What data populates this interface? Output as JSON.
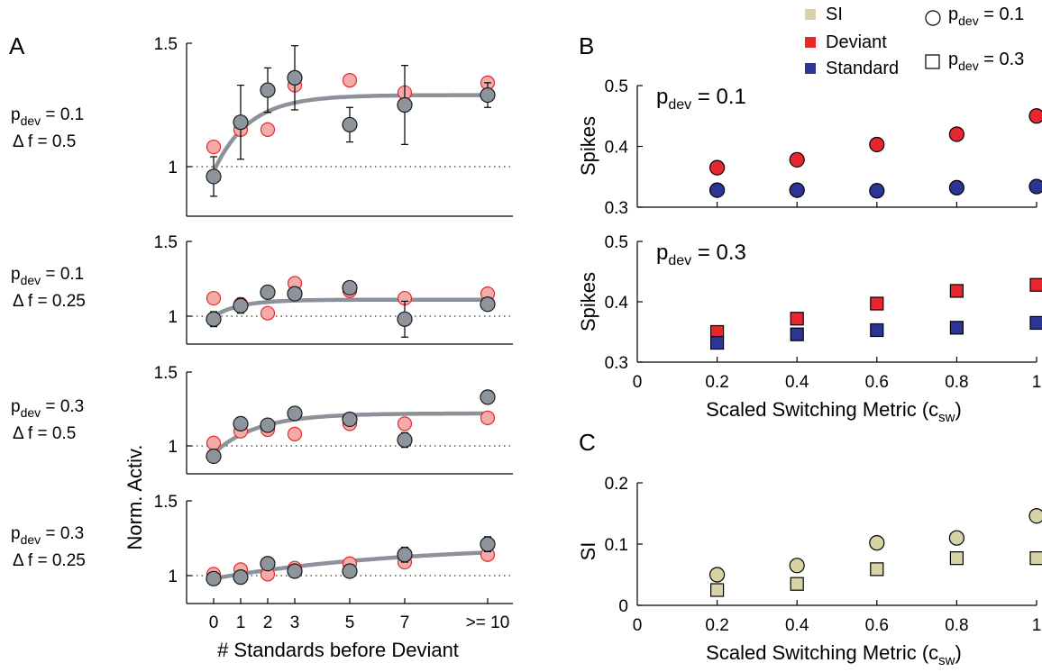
{
  "panel_letters": {
    "A": "A",
    "B": "B",
    "C": "C"
  },
  "panelA": {
    "xlabel": "# Standards before Deviant",
    "ylabel": "Norm. Activ.",
    "x_ticks": [
      "0",
      "1",
      "2",
      "3",
      "5",
      "7",
      ">= 10"
    ],
    "y_ticks": [
      "1",
      "1.5"
    ],
    "rows": [
      {
        "pdev": "0.1",
        "df": "0.5"
      },
      {
        "pdev": "0.1",
        "df": "0.25"
      },
      {
        "pdev": "0.3",
        "df": "0.5"
      },
      {
        "pdev": "0.3",
        "df": "0.25"
      }
    ]
  },
  "panelB": {
    "ylabel": "Spikes",
    "xlabel": "Scaled Switching Metric (c",
    "xlabel_sub": "sw",
    "y_ticks": [
      "0.3",
      "0.4",
      "0.5"
    ],
    "x_ticks": [
      "0",
      "0.2",
      "0.4",
      "0.6",
      "0.8",
      "1"
    ],
    "top_label_value": "0.1",
    "bottom_label_value": "0.3"
  },
  "panelC": {
    "ylabel": "SI",
    "xlabel": "Scaled Switching Metric (c",
    "xlabel_sub": "sw",
    "y_ticks": [
      "0",
      "0.1",
      "0.2"
    ],
    "x_ticks": [
      "0",
      "0.2",
      "0.4",
      "0.6",
      "0.8",
      "1"
    ]
  },
  "legend": {
    "si": "SI",
    "deviant": "Deviant",
    "standard": "Standard",
    "circle_value": "0.1",
    "square_value": "0.3"
  },
  "labels": {
    "p": "p",
    "dev": "dev",
    "eq": " = ",
    "delta": "Δ f = "
  },
  "colors": {
    "deviant": "#e8262d",
    "standard": "#2b3595",
    "si": "#d7d3a4",
    "activ": "#8d949b",
    "deviant_light": "#f2adaa",
    "fit": "#8c9299"
  },
  "chart_data": [
    {
      "type": "scatter",
      "panel": "A1",
      "x": [
        0,
        1,
        2,
        3,
        5,
        7,
        10
      ],
      "series": [
        {
          "values": [
            0.96,
            1.18,
            1.31,
            1.36,
            1.17,
            1.25,
            1.29
          ],
          "err": [
            0.08,
            0.15,
            0.09,
            0.13,
            0.07,
            0.16,
            0.05
          ]
        },
        {
          "values": [
            1.08,
            1.15,
            1.15,
            1.33,
            1.35,
            1.3,
            1.34
          ]
        }
      ],
      "fit": {
        "y0": 0.98,
        "ymax": 1.29,
        "tau": 1.3
      },
      "ylim": [
        0.78,
        1.5
      ]
    },
    {
      "type": "scatter",
      "panel": "A2",
      "x": [
        0,
        1,
        2,
        3,
        5,
        7,
        10
      ],
      "series": [
        {
          "values": [
            0.98,
            1.07,
            1.16,
            1.15,
            1.19,
            0.98,
            1.08
          ],
          "err": [
            0.05,
            0.05,
            0.04,
            0.04,
            0.04,
            0.12,
            0.03
          ]
        },
        {
          "values": [
            1.12,
            1.08,
            1.02,
            1.22,
            1.17,
            1.12,
            1.15
          ]
        }
      ],
      "fit": {
        "y0": 1.0,
        "ymax": 1.11,
        "tau": 1.0
      },
      "ylim": [
        0.88,
        1.5
      ]
    },
    {
      "type": "scatter",
      "panel": "A3",
      "x": [
        0,
        1,
        2,
        3,
        5,
        7,
        10
      ],
      "series": [
        {
          "values": [
            0.93,
            1.15,
            1.14,
            1.22,
            1.18,
            1.04,
            1.33
          ],
          "err": [
            0.02,
            0.03,
            0.03,
            0.03,
            0.03,
            0.05,
            0.03
          ]
        },
        {
          "values": [
            1.02,
            1.1,
            1.11,
            1.08,
            1.15,
            1.15,
            1.19
          ]
        }
      ],
      "fit": {
        "y0": 0.95,
        "ymax": 1.22,
        "tau": 1.6
      },
      "ylim": [
        0.88,
        1.5
      ]
    },
    {
      "type": "scatter",
      "panel": "A4",
      "x": [
        0,
        1,
        2,
        3,
        5,
        7,
        10
      ],
      "series": [
        {
          "values": [
            0.98,
            0.99,
            1.08,
            1.03,
            1.03,
            1.14,
            1.21
          ],
          "err": [
            0.02,
            0.02,
            0.02,
            0.03,
            0.04,
            0.05,
            0.05
          ]
        },
        {
          "values": [
            1.01,
            1.04,
            1.01,
            1.05,
            1.08,
            1.09,
            1.14
          ]
        }
      ],
      "fit": {
        "y0": 0.98,
        "ymax": 1.21,
        "tau": 7.0
      },
      "ylim": [
        0.88,
        1.5
      ]
    },
    {
      "type": "scatter",
      "panel": "B-top",
      "x": [
        0.2,
        0.4,
        0.6,
        0.8,
        1.0
      ],
      "series": [
        {
          "name": "Deviant",
          "values": [
            0.365,
            0.378,
            0.403,
            0.42,
            0.45
          ]
        },
        {
          "name": "Standard",
          "values": [
            0.328,
            0.328,
            0.327,
            0.332,
            0.334
          ]
        }
      ],
      "xlim": [
        0,
        1
      ],
      "ylim": [
        0.3,
        0.5
      ]
    },
    {
      "type": "scatter",
      "panel": "B-bottom",
      "x": [
        0.2,
        0.4,
        0.6,
        0.8,
        1.0
      ],
      "series": [
        {
          "name": "Deviant",
          "values": [
            0.35,
            0.372,
            0.397,
            0.418,
            0.428
          ]
        },
        {
          "name": "Standard",
          "values": [
            0.332,
            0.346,
            0.353,
            0.357,
            0.365
          ]
        }
      ],
      "xlim": [
        0,
        1
      ],
      "ylim": [
        0.3,
        0.5
      ]
    },
    {
      "type": "scatter",
      "panel": "C",
      "x": [
        0.2,
        0.4,
        0.6,
        0.8,
        1.0
      ],
      "series": [
        {
          "values": [
            0.05,
            0.065,
            0.102,
            0.11,
            0.146
          ]
        },
        {
          "values": [
            0.025,
            0.035,
            0.059,
            0.077,
            0.077
          ]
        }
      ],
      "xlim": [
        0,
        1
      ],
      "ylim": [
        0,
        0.2
      ]
    }
  ]
}
